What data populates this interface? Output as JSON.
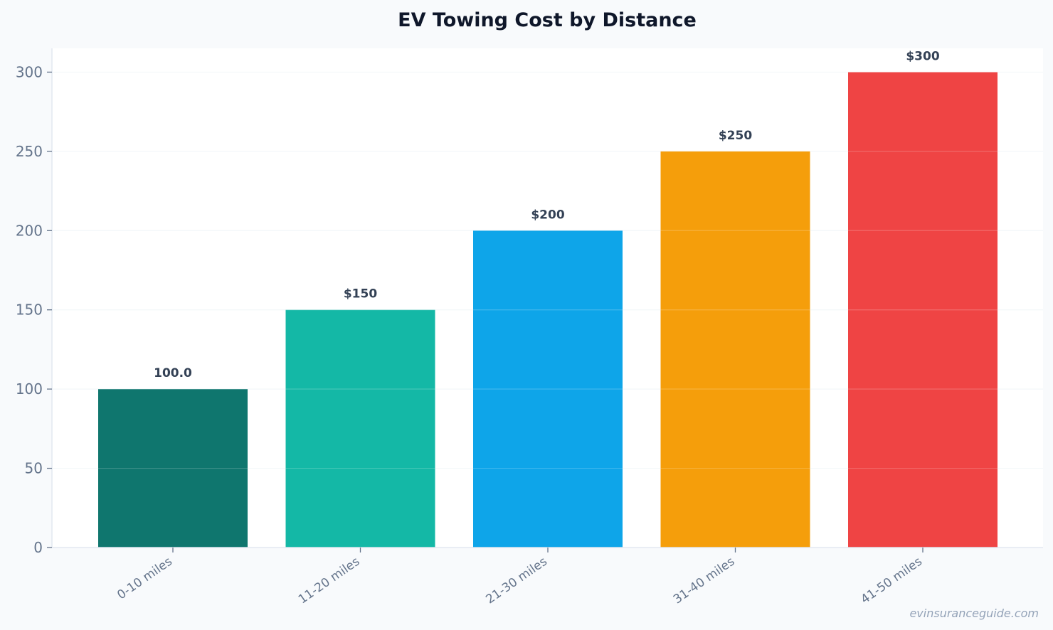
{
  "chart_data": {
    "type": "bar",
    "title": "EV Towing Cost by Distance",
    "xlabel": "",
    "ylabel": "",
    "categories": [
      "0-10 miles",
      "11-20 miles",
      "21-30 miles",
      "31-40 miles",
      "41-50 miles"
    ],
    "values": [
      100,
      150,
      200,
      250,
      300
    ],
    "data_labels": [
      "100.0",
      "$150",
      "$200",
      "$250",
      "$300"
    ],
    "colors": [
      "#0f766e",
      "#14b8a6",
      "#0ea5e9",
      "#f59e0b",
      "#ef4444"
    ],
    "ylim": [
      0,
      315
    ],
    "yticks": [
      0,
      50,
      100,
      150,
      200,
      250,
      300
    ],
    "ytick_labels": [
      "0",
      "50",
      "100",
      "150",
      "200",
      "250",
      "300"
    ],
    "grid": true,
    "legend": "none"
  },
  "watermark": "evinsuranceguide.com"
}
